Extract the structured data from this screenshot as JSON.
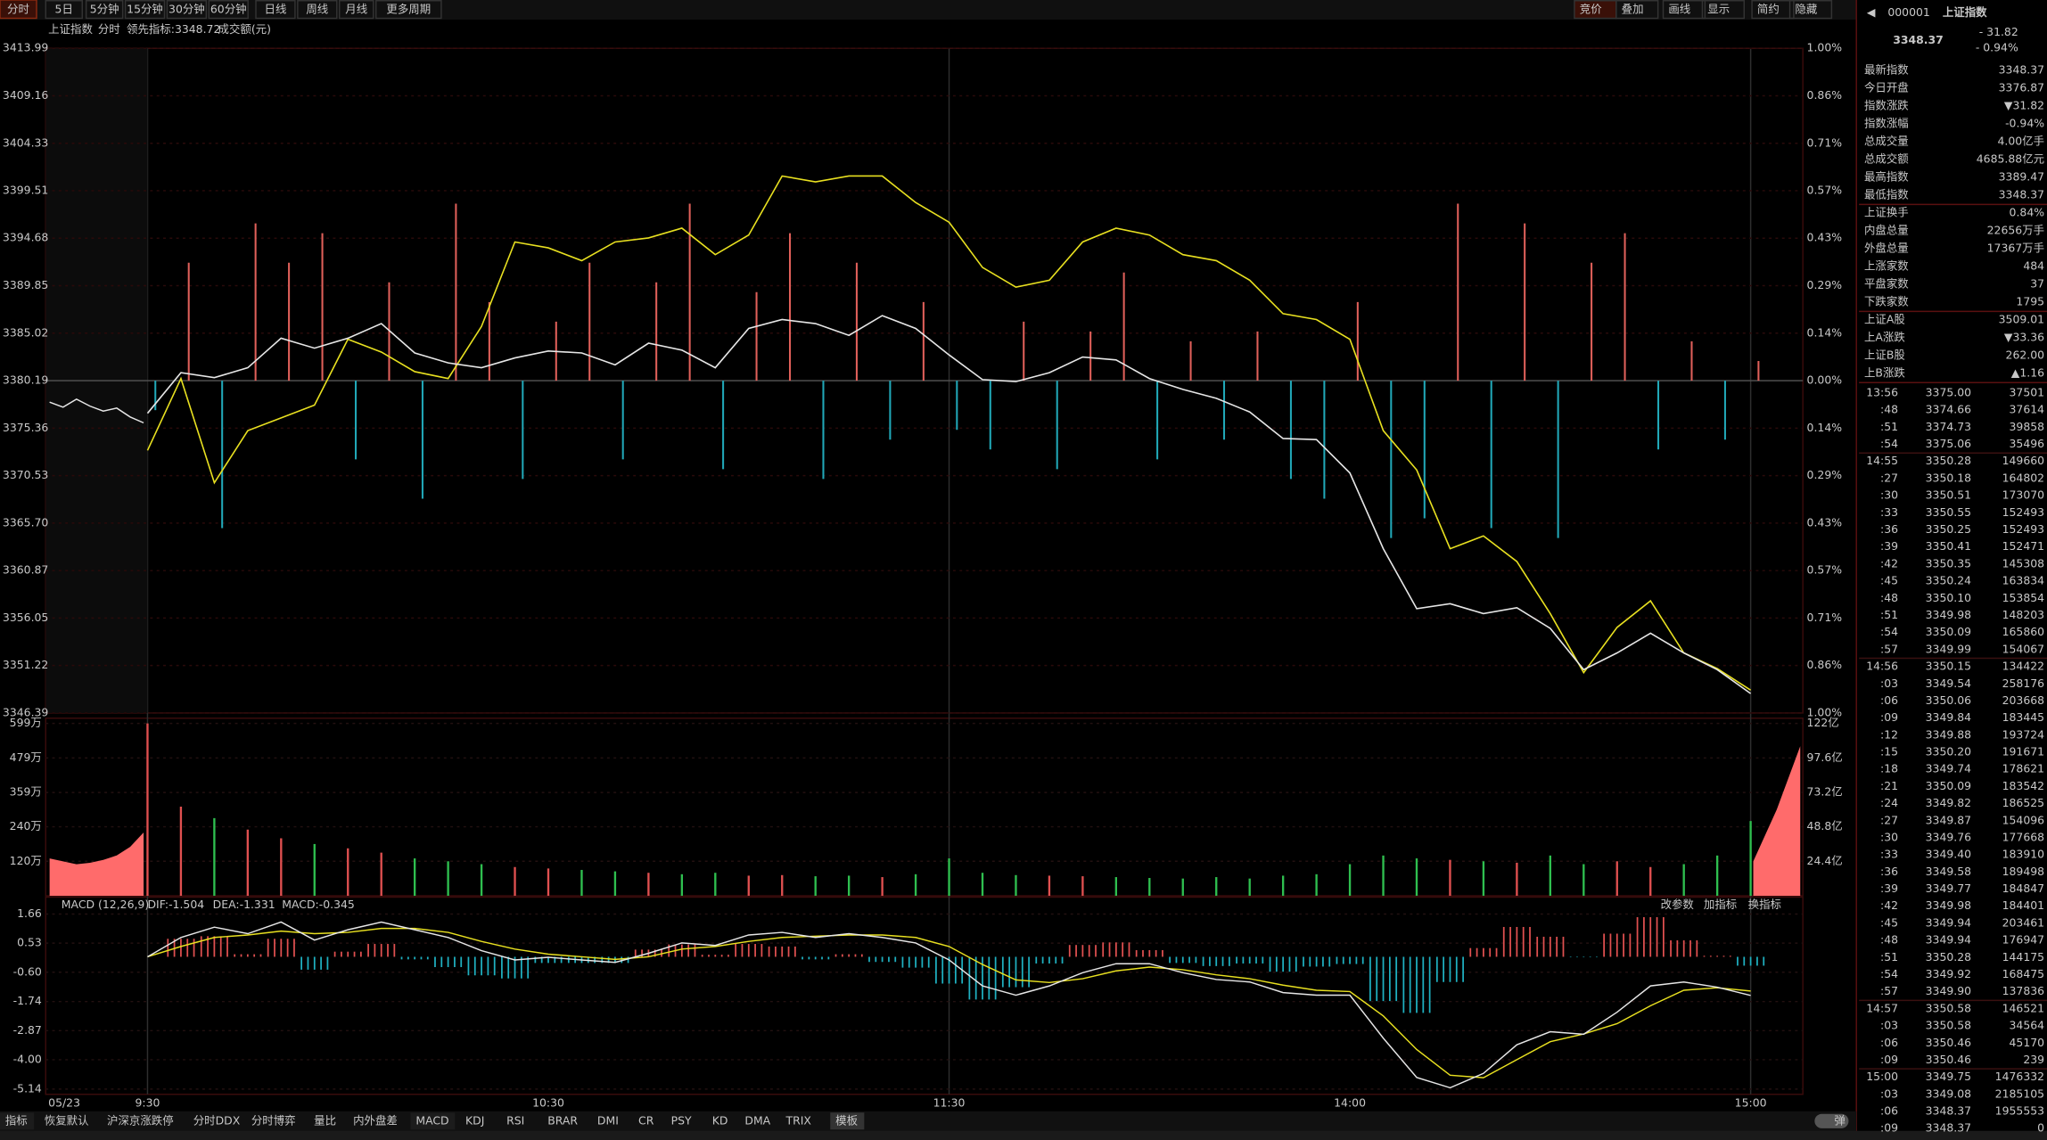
{
  "toolbar": {
    "periods": [
      "分时",
      "5日",
      "5分钟",
      "15分钟",
      "30分钟",
      "60分钟",
      "日线",
      "周线",
      "月线",
      "更多周期"
    ],
    "tools": [
      "竞价",
      "叠加",
      "画线",
      "显示",
      "简约",
      "隐藏"
    ]
  },
  "chart_header": {
    "name": "上证指数",
    "mode": "分时",
    "lead": "领先指标:3348.72",
    "amount": "成交额(元)"
  },
  "price_panel": {
    "ylim": [
      3346.39,
      3413.99
    ],
    "yticks": [
      3413.99,
      3409.16,
      3404.33,
      3399.51,
      3394.68,
      3389.85,
      3385.02,
      3380.19,
      3375.36,
      3370.53,
      {
        "value": 3365.7,
        "label": "3365.70"
      },
      3360.87,
      3356.05,
      3351.22,
      3346.39
    ],
    "pct_labels": [
      "1.00%",
      "0.86%",
      "0.71%",
      "0.57%",
      "0.43%",
      "0.29%",
      "0.14%",
      "0.00%",
      "0.14%",
      "0.29%",
      "0.43%",
      "0.57%",
      "0.71%",
      "0.86%",
      "1.00%"
    ],
    "prev_day": [
      3378.0,
      3377.5,
      3378.3,
      3377.6,
      3377.1,
      3377.4,
      3376.5,
      3375.9
    ],
    "price": [
      3376.87,
      3381.0,
      3380.5,
      3381.5,
      3384.5,
      3383.5,
      3384.5,
      3386.0,
      3383.0,
      3382.0,
      3381.5,
      3382.5,
      3383.2,
      3383.0,
      3381.8,
      3384.0,
      3383.3,
      3381.5,
      3385.5,
      3386.4,
      3386.0,
      3384.8,
      3386.8,
      3385.5,
      3382.8,
      3380.3,
      3380.1,
      3381.0,
      3382.6,
      3382.3,
      3380.4,
      3379.3,
      3378.4,
      3377.0,
      3374.3,
      3374.2,
      3370.8,
      3363.1,
      3357.0,
      3357.5,
      3356.5,
      3357.1,
      3355.0,
      3350.8,
      3352.5,
      3354.5,
      3352.5,
      3350.8,
      3348.37
    ],
    "lead": [
      3373.1,
      3380.4,
      3369.8,
      3375.1,
      3376.4,
      3377.7,
      3384.4,
      3383.1,
      3381.1,
      3380.4,
      3385.7,
      3394.3,
      3393.7,
      3392.4,
      3394.3,
      3394.7,
      3395.7,
      3393.0,
      3395.0,
      3401.0,
      3400.4,
      3401.0,
      3401.0,
      3398.3,
      3396.3,
      3391.7,
      3389.7,
      3390.4,
      3394.3,
      3395.7,
      3395.0,
      3393.0,
      3392.4,
      3390.4,
      3387.0,
      3386.4,
      3384.4,
      3375.1,
      3371.1,
      3363.1,
      3364.4,
      3361.8,
      3356.5,
      3350.5,
      3355.1,
      3357.8,
      3352.5,
      3350.9,
      3348.72
    ],
    "signal": [
      -3,
      12,
      -15,
      16,
      12,
      15,
      -8,
      10,
      -12,
      18,
      8,
      -10,
      6,
      12,
      -8,
      10,
      18,
      -9,
      9,
      15,
      -10,
      12,
      -6,
      8,
      -5,
      -7,
      6,
      -9,
      5,
      11,
      -8,
      4,
      -6,
      5,
      -10,
      -12,
      8,
      -16,
      -14,
      18,
      -15,
      16,
      -16,
      12,
      15,
      -7,
      4,
      -6,
      2
    ]
  },
  "volume_panel": {
    "ylim": [
      0,
      599
    ],
    "yticks": [
      {
        "value": 599,
        "label": "599万"
      },
      {
        "value": 479,
        "label": "479万"
      },
      {
        "value": 359,
        "label": "359万"
      },
      {
        "value": 240,
        "label": "240万"
      },
      {
        "value": 120,
        "label": "120万"
      }
    ],
    "y2lim": [
      0,
      122
    ],
    "y2ticks": [
      {
        "value": 122,
        "label": "122亿"
      },
      {
        "value": 97.6,
        "label": "97.6亿"
      },
      {
        "value": 73.2,
        "label": "73.2亿"
      },
      {
        "value": 48.8,
        "label": "48.8亿"
      },
      {
        "value": 24.4,
        "label": "24.4亿"
      }
    ],
    "prev_day": [
      130,
      120,
      110,
      115,
      125,
      140,
      170,
      220
    ],
    "values": [
      599,
      310,
      270,
      230,
      200,
      180,
      165,
      150,
      130,
      120,
      110,
      100,
      95,
      90,
      85,
      80,
      75,
      80,
      70,
      72,
      68,
      70,
      65,
      75,
      130,
      80,
      72,
      70,
      68,
      65,
      62,
      60,
      65,
      60,
      70,
      75,
      110,
      140,
      130,
      125,
      120,
      115,
      140,
      110,
      120,
      100,
      110,
      140,
      260
    ],
    "after_close": [
      120,
      300,
      520
    ]
  },
  "macd_panel": {
    "title": "MACD (12,26,9)",
    "dif_label": "DIF:-1.504",
    "dea_label": "DEA:-1.331",
    "macd_label": "MACD:-0.345",
    "actions": [
      "改参数",
      "加指标",
      "换指标"
    ],
    "ylim": [
      -5.14,
      1.66
    ],
    "yticks": [
      1.66,
      0.53,
      {
        "value": -0.6,
        "label": "-0.60"
      },
      -1.74,
      -2.87,
      {
        "value": -4,
        "label": "-4.00"
      },
      -5.14
    ],
    "dif": [
      0,
      0.75,
      1.15,
      0.9,
      1.35,
      0.65,
      1.05,
      1.35,
      1.05,
      0.75,
      0.24,
      -0.12,
      -0.02,
      -0.12,
      -0.22,
      0.14,
      0.54,
      0.44,
      0.85,
      0.95,
      0.75,
      0.9,
      0.75,
      0.54,
      -0.12,
      -1.13,
      -1.49,
      -1.13,
      -0.62,
      -0.27,
      -0.27,
      -0.62,
      -0.88,
      -0.98,
      -1.39,
      -1.49,
      -1.49,
      -3.16,
      -4.69,
      -5.09,
      -4.53,
      -3.42,
      -2.91,
      -3.01,
      -2.15,
      -1.13,
      -0.98,
      -1.18,
      -1.504
    ],
    "dea": [
      0,
      0.4,
      0.75,
      0.85,
      1.0,
      0.9,
      0.95,
      1.1,
      1.1,
      0.95,
      0.6,
      0.3,
      0.1,
      0.0,
      -0.1,
      0.0,
      0.3,
      0.4,
      0.6,
      0.75,
      0.8,
      0.85,
      0.85,
      0.75,
      0.4,
      -0.3,
      -0.9,
      -1.0,
      -0.85,
      -0.55,
      -0.4,
      -0.5,
      -0.7,
      -0.85,
      -1.1,
      -1.3,
      -1.35,
      -2.3,
      -3.6,
      -4.6,
      -4.7,
      -4.0,
      -3.3,
      -3.0,
      -2.6,
      -1.9,
      -1.3,
      -1.2,
      -1.331
    ],
    "macd": [
      0,
      0.7,
      0.8,
      0.1,
      0.7,
      -0.5,
      0.2,
      0.5,
      -0.1,
      -0.4,
      -0.72,
      -0.84,
      -0.24,
      -0.24,
      -0.24,
      0.28,
      0.48,
      0.08,
      0.5,
      0.4,
      -0.1,
      0.1,
      -0.2,
      -0.42,
      -1.04,
      -1.66,
      -1.18,
      -0.26,
      0.46,
      0.56,
      0.26,
      -0.24,
      -0.36,
      -0.26,
      -0.58,
      -0.38,
      -0.28,
      -1.72,
      -2.18,
      -0.98,
      0.34,
      1.16,
      0.78,
      -0.02,
      0.9,
      1.54,
      0.64,
      0.04,
      -0.345
    ]
  },
  "time_axis": [
    "05/23",
    "9:30",
    "10:30",
    "11:30",
    "14:00",
    "15:00"
  ],
  "bottom_tabs": [
    "指标",
    "恢复默认",
    "沪深京涨跌停",
    "分时DDX",
    "分时博弈",
    "量比",
    "内外盘差",
    "MACD",
    "KDJ",
    "RSI",
    "BRAR",
    "DMI",
    "CR",
    "PSY",
    "KD",
    "DMA",
    "TRIX",
    "模板"
  ],
  "bottom_button": "弹",
  "quote": {
    "code": "000001",
    "name": "上证指数",
    "price": "3348.37",
    "change": "- 31.82",
    "change_pct": "- 0.94%",
    "stats": [
      [
        "最新指数",
        "3348.37"
      ],
      [
        "今日开盘",
        "3376.87"
      ],
      [
        "指数涨跌",
        "▼31.82"
      ],
      [
        "指数涨幅",
        "-0.94%"
      ],
      [
        "总成交量",
        "4.00亿手"
      ],
      [
        "总成交额",
        "4685.88亿元"
      ],
      [
        "最高指数",
        "3389.47"
      ],
      [
        "最低指数",
        "3348.37"
      ],
      [
        "上证换手",
        "0.84%"
      ],
      [
        "内盘总量",
        "22656万手"
      ],
      [
        "外盘总量",
        "17367万手"
      ],
      [
        "上涨家数",
        "484"
      ],
      [
        "平盘家数",
        "37"
      ],
      [
        "下跌家数",
        "1795"
      ],
      [
        "上证A股",
        "3509.01"
      ],
      [
        "上A涨跌",
        "▼33.36"
      ],
      [
        "上证B股",
        "262.00"
      ],
      [
        "上B涨跌",
        "▲1.16"
      ]
    ],
    "ticks": [
      [
        "13:56",
        "3375.00",
        "37501"
      ],
      [
        ":48",
        "3374.66",
        "37614"
      ],
      [
        ":51",
        "3374.73",
        "39858"
      ],
      [
        ":54",
        "3375.06",
        "35496"
      ],
      [
        "14:55",
        "3350.28",
        "149660"
      ],
      [
        ":27",
        "3350.18",
        "164802"
      ],
      [
        ":30",
        "3350.51",
        "173070"
      ],
      [
        ":33",
        "3350.55",
        "152493"
      ],
      [
        ":36",
        "3350.25",
        "152493"
      ],
      [
        ":39",
        "3350.41",
        "152471"
      ],
      [
        ":42",
        "3350.35",
        "145308"
      ],
      [
        ":45",
        "3350.24",
        "163834"
      ],
      [
        ":48",
        "3350.10",
        "153854"
      ],
      [
        ":51",
        "3349.98",
        "148203"
      ],
      [
        ":54",
        "3350.09",
        "165860"
      ],
      [
        ":57",
        "3349.99",
        "154067"
      ],
      [
        "14:56",
        "3350.15",
        "134422"
      ],
      [
        ":03",
        "3349.54",
        "258176"
      ],
      [
        ":06",
        "3350.06",
        "203668"
      ],
      [
        ":09",
        "3349.84",
        "183445"
      ],
      [
        ":12",
        "3349.88",
        "193724"
      ],
      [
        ":15",
        "3350.20",
        "191671"
      ],
      [
        ":18",
        "3349.74",
        "178621"
      ],
      [
        ":21",
        "3350.09",
        "183542"
      ],
      [
        ":24",
        "3349.82",
        "186525"
      ],
      [
        ":27",
        "3349.87",
        "154096"
      ],
      [
        ":30",
        "3349.76",
        "177668"
      ],
      [
        ":33",
        "3349.40",
        "183910"
      ],
      [
        ":36",
        "3349.58",
        "189498"
      ],
      [
        ":39",
        "3349.77",
        "184847"
      ],
      [
        ":42",
        "3349.98",
        "184401"
      ],
      [
        ":45",
        "3349.94",
        "203461"
      ],
      [
        ":48",
        "3349.94",
        "176947"
      ],
      [
        ":51",
        "3350.28",
        "144175"
      ],
      [
        ":54",
        "3349.92",
        "168475"
      ],
      [
        ":57",
        "3349.90",
        "137836"
      ],
      [
        "14:57",
        "3350.58",
        "146521"
      ],
      [
        ":03",
        "3350.58",
        "34564"
      ],
      [
        ":06",
        "3350.46",
        "45170"
      ],
      [
        ":09",
        "3350.46",
        "239"
      ],
      [
        "15:00",
        "3349.75",
        "1476332"
      ],
      [
        ":03",
        "3349.08",
        "2185105"
      ],
      [
        ":06",
        "3348.37",
        "1955553"
      ],
      [
        ":09",
        "3348.37",
        "0"
      ]
    ]
  }
}
